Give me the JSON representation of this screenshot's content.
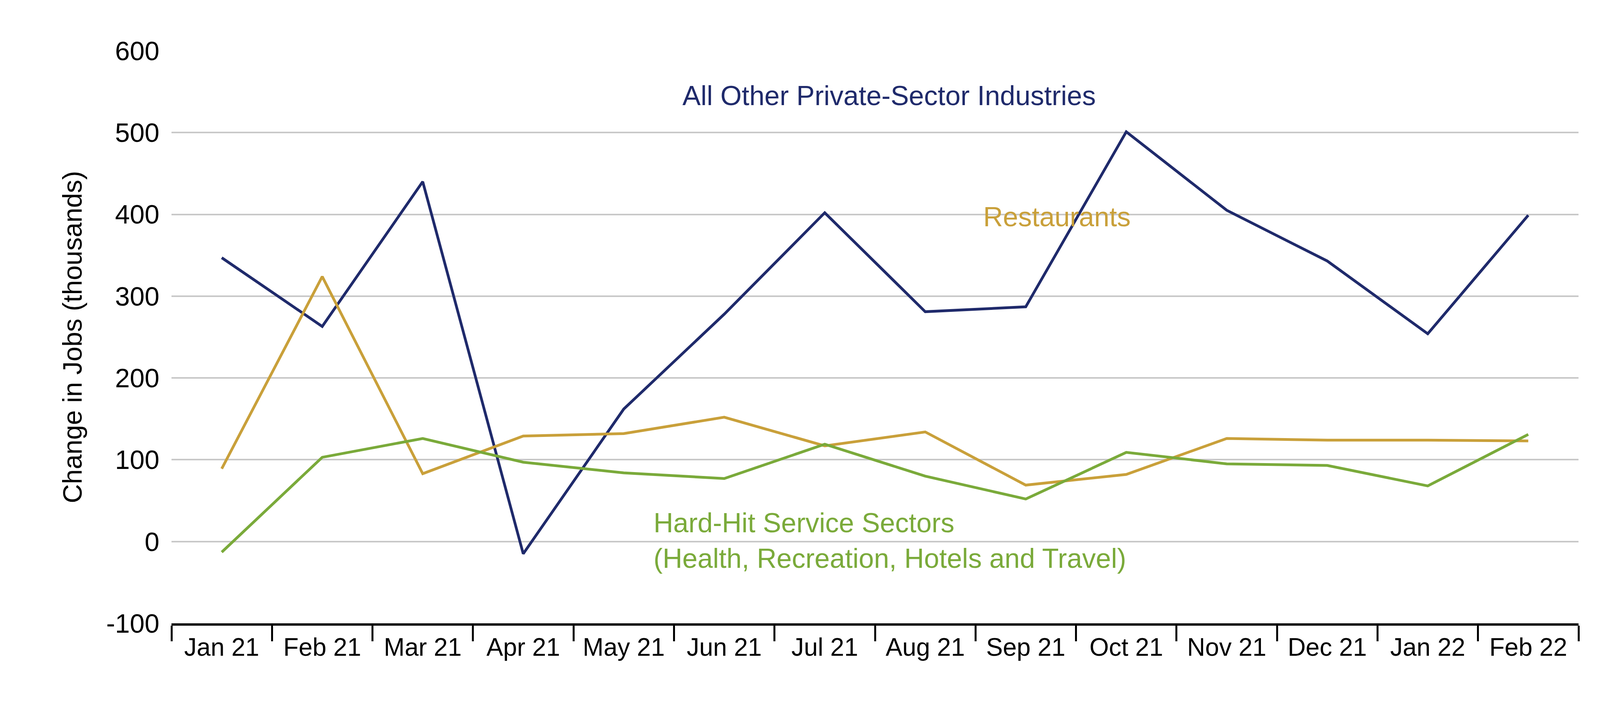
{
  "chart_data": {
    "type": "line",
    "y_label": "Change in Jobs (thousands)",
    "categories": [
      "Jan 21",
      "Feb 21",
      "Mar 21",
      "Apr 21",
      "May 21",
      "Jun 21",
      "Jul 21",
      "Aug 21",
      "Sep 21",
      "Oct 21",
      "Nov 21",
      "Dec 21",
      "Jan 22",
      "Feb 22"
    ],
    "series": [
      {
        "name": "All Other Private-Sector Industries",
        "color": "#1f2a6b",
        "values": [
          347,
          263,
          440,
          -15,
          162,
          278,
          402,
          281,
          287,
          501,
          405,
          343,
          254,
          399
        ]
      },
      {
        "name": "Restaurants",
        "color": "#c9a03a",
        "values": [
          89,
          324,
          83,
          129,
          132,
          152,
          117,
          134,
          69,
          82,
          126,
          124,
          124,
          123
        ]
      },
      {
        "name": "Hard-Hit Service Sectors\n(Health, Recreation, Hotels and Travel)",
        "color": "#7aaa3a",
        "values": [
          -13,
          103,
          126,
          97,
          84,
          77,
          119,
          80,
          52,
          109,
          95,
          93,
          68,
          131
        ]
      }
    ],
    "ylim": [
      -100,
      600
    ],
    "yticks": [
      -100,
      0,
      100,
      200,
      300,
      400,
      500,
      600
    ],
    "grid": true,
    "legend": "none"
  }
}
